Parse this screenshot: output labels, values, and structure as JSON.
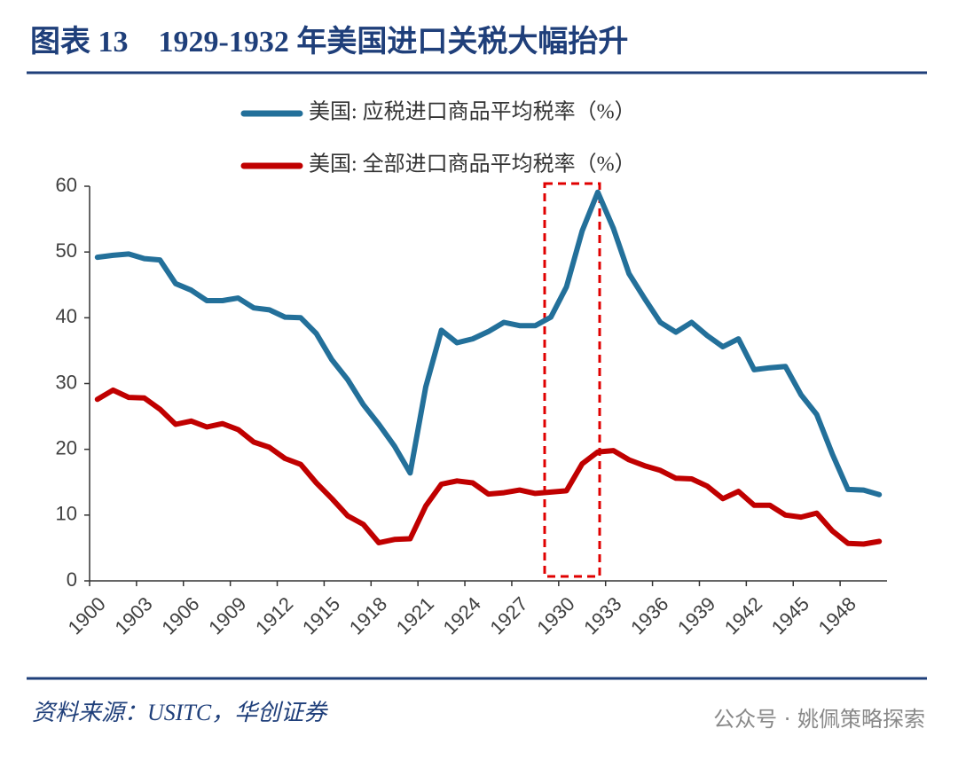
{
  "chart_data": {
    "type": "line",
    "title": "图表 13　1929-1932 年美国进口关税大幅抬升",
    "categories": [
      "1900",
      null,
      null,
      "1903",
      null,
      null,
      "1906",
      null,
      null,
      "1909",
      null,
      null,
      "1912",
      null,
      null,
      "1915",
      null,
      null,
      "1918",
      null,
      null,
      "1921",
      null,
      null,
      "1924",
      null,
      null,
      "1927",
      null,
      null,
      "1930",
      null,
      null,
      "1933",
      null,
      null,
      "1936",
      null,
      null,
      "1939",
      null,
      null,
      "1942",
      null,
      null,
      "1945",
      null,
      null,
      "1948",
      null,
      null
    ],
    "series": [
      {
        "name": "美国: 应税进口商品平均税率（%）",
        "color": "#23709a",
        "values": [
          49.2,
          49.5,
          49.7,
          49.0,
          48.8,
          45.2,
          44.2,
          42.6,
          42.6,
          43.0,
          41.5,
          41.2,
          40.1,
          40.0,
          37.6,
          33.6,
          30.6,
          26.8,
          23.8,
          20.5,
          16.4,
          29.5,
          38.1,
          36.2,
          36.8,
          37.9,
          39.3,
          38.8,
          38.8,
          40.1,
          44.7,
          53.2,
          59.1,
          53.6,
          46.7,
          42.9,
          39.3,
          37.8,
          39.3,
          37.3,
          35.6,
          36.8,
          32.1,
          32.4,
          32.6,
          28.3,
          25.3,
          19.3,
          13.9,
          13.8,
          13.1
        ]
      },
      {
        "name": "美国: 全部进口商品平均税率（%）",
        "color": "#c00000",
        "values": [
          27.6,
          29.0,
          27.9,
          27.8,
          26.1,
          23.8,
          24.3,
          23.4,
          23.9,
          23.0,
          21.1,
          20.3,
          18.6,
          17.7,
          14.9,
          12.5,
          9.9,
          8.6,
          5.8,
          6.3,
          6.4,
          11.4,
          14.7,
          15.2,
          14.9,
          13.2,
          13.4,
          13.8,
          13.3,
          13.5,
          13.7,
          17.8,
          19.6,
          19.8,
          18.4,
          17.5,
          16.8,
          15.6,
          15.5,
          14.4,
          12.5,
          13.6,
          11.5,
          11.5,
          10.0,
          9.7,
          10.3,
          7.6,
          5.7,
          5.6,
          6.0
        ]
      }
    ],
    "ylim": [
      0,
      60
    ],
    "yticks": [
      0,
      10,
      20,
      30,
      40,
      50,
      60
    ],
    "source": "资料来源：USITC，华创证券",
    "watermark": "公众号 · 姚佩策略探索"
  }
}
